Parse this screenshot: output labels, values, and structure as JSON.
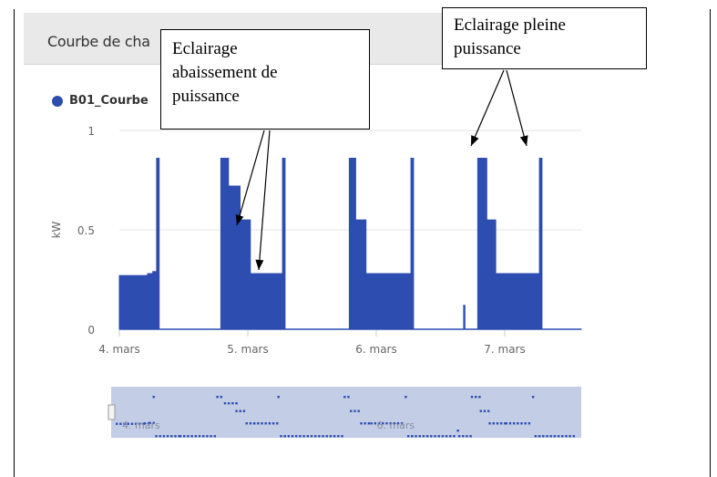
{
  "panel": {
    "title": "Courbe de cha"
  },
  "legend": {
    "series_name": "B01_Courbe",
    "color": "#2d4db0"
  },
  "callouts": {
    "reduced": [
      "Eclairage",
      "abaissement de",
      "puissance"
    ],
    "full": [
      "Eclairage pleine",
      "puissance"
    ]
  },
  "colors": {
    "series": "#2d4db0",
    "navigator_bg": "#c3cde6",
    "navigator_points": "#2d4db0"
  },
  "chart_data": {
    "type": "area",
    "ylabel": "kW",
    "ylim": [
      0,
      1
    ],
    "yticks": [
      "0",
      "0.5",
      "1"
    ],
    "xticks": [
      "4. mars",
      "5. mars",
      "6. mars",
      "7. mars"
    ],
    "navigator_labels": [
      "4. mars",
      "6. mars"
    ],
    "grid": true,
    "series": [
      {
        "name": "B01_Courbe",
        "x": [
          4.0,
          4.0,
          4.22,
          4.22,
          4.26,
          4.26,
          4.29,
          4.29,
          4.31,
          4.31,
          4.5,
          4.5,
          4.79,
          4.79,
          4.85,
          4.85,
          4.94,
          4.94,
          5.02,
          5.02,
          5.08,
          5.08,
          5.27,
          5.27,
          5.29,
          5.29,
          5.32,
          5.32,
          5.79,
          5.79,
          5.84,
          5.84,
          5.92,
          5.92,
          6.0,
          6.0,
          6.27,
          6.27,
          6.29,
          6.29,
          6.32,
          6.32,
          6.68,
          6.68,
          6.69,
          6.69,
          6.79,
          6.79,
          6.86,
          6.86,
          6.93,
          6.93,
          7.02,
          7.02,
          7.06,
          7.06,
          7.27,
          7.27,
          7.29,
          7.29,
          7.32,
          7.32,
          7.6
        ],
        "y": [
          0,
          0.27,
          0.27,
          0.28,
          0.28,
          0.29,
          0.29,
          0.86,
          0.86,
          0,
          0,
          0,
          0,
          0.86,
          0.86,
          0.72,
          0.72,
          0.55,
          0.55,
          0.28,
          0.28,
          0.28,
          0.28,
          0.86,
          0.86,
          0,
          0,
          0,
          0,
          0.86,
          0.86,
          0.55,
          0.55,
          0.28,
          0.28,
          0.28,
          0.28,
          0.86,
          0.86,
          0,
          0,
          0,
          0,
          0.12,
          0.12,
          0,
          0,
          0.86,
          0.86,
          0.55,
          0.55,
          0.28,
          0.28,
          0.28,
          0.28,
          0.28,
          0.28,
          0.86,
          0.86,
          0,
          0,
          0,
          0
        ]
      }
    ]
  }
}
